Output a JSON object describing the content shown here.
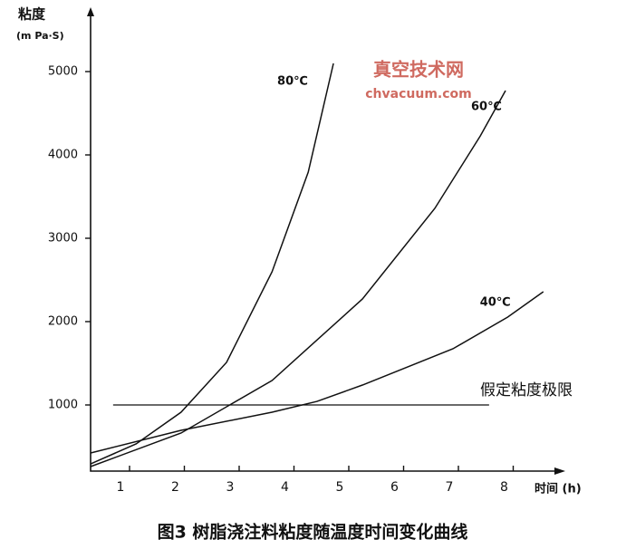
{
  "chart_data": {
    "type": "line",
    "title": "粘度",
    "y_label": "(m Pa·S)",
    "x_label": "时间 (h)",
    "caption": "图3  树脂浇注料粘度随温度时间变化曲线",
    "watermark": [
      "真空技术网",
      "chvacuum.com"
    ],
    "xlim": [
      0.3,
      9.0
    ],
    "ylim": [
      200,
      5700
    ],
    "xticks": [
      1,
      2,
      3,
      4,
      5,
      6,
      7,
      8
    ],
    "yticks": [
      1000,
      2000,
      3000,
      4000,
      5000
    ],
    "grid": false,
    "series": [
      {
        "name": "80℃",
        "color": "#111111",
        "x": [
          0.29,
          1.12,
          1.94,
          2.77,
          3.6,
          4.26,
          4.72
        ],
        "values": [
          293,
          533,
          913,
          1511,
          2598,
          3793,
          5098
        ]
      },
      {
        "name": "60℃",
        "color": "#111111",
        "x": [
          0.29,
          1.94,
          3.6,
          5.25,
          6.57,
          7.4,
          7.86
        ],
        "values": [
          261,
          663,
          1293,
          2272,
          3359,
          4228,
          4772
        ]
      },
      {
        "name": "40℃",
        "color": "#111111",
        "x": [
          0.29,
          1.94,
          3.6,
          4.42,
          5.25,
          6.9,
          7.9,
          8.55
        ],
        "values": [
          424,
          696,
          913,
          1043,
          1239,
          1674,
          2054,
          2359
        ]
      }
    ],
    "limit": {
      "label": "假定粘度极限",
      "value": 1000,
      "x": [
        0.7,
        7.56
      ]
    }
  }
}
